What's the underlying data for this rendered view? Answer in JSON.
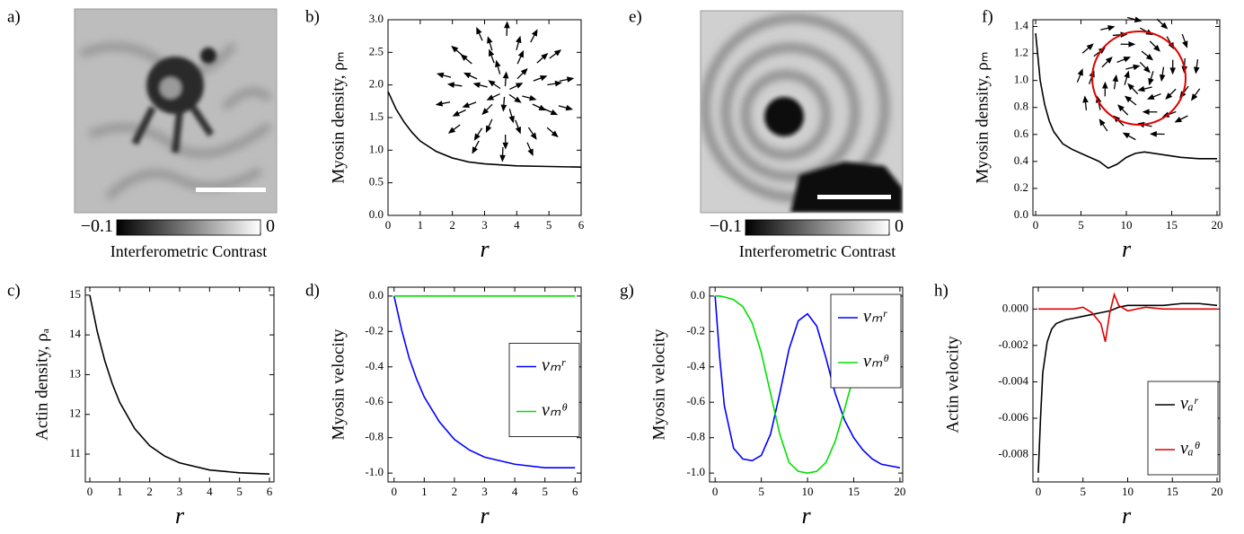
{
  "chart_data": [
    {
      "type": "image",
      "panel": "a)",
      "colorbar": {
        "lim": [
          -0.1,
          0
        ],
        "ticks": [
          {
            "value": -0.1,
            "label": "−0.1"
          },
          0
        ],
        "label": "Interferometric Contrast"
      }
    },
    {
      "type": "line",
      "panel": "b)",
      "xlabel": "r",
      "ylabel": "Myosin density, ρₘ",
      "x": [
        0,
        0.25,
        0.5,
        0.75,
        1,
        1.5,
        2,
        2.5,
        3,
        4,
        5,
        6
      ],
      "series": [
        {
          "color": "#000000",
          "values": [
            1.9,
            1.63,
            1.43,
            1.27,
            1.14,
            0.98,
            0.88,
            0.82,
            0.79,
            0.76,
            0.75,
            0.74
          ]
        }
      ],
      "xlim": [
        0,
        6
      ],
      "ylim": [
        0,
        3
      ],
      "xticks": [
        0,
        1,
        2,
        3,
        4,
        5,
        6
      ],
      "yticks": [
        {
          "value": 0,
          "label": "0.0"
        },
        0.5,
        {
          "value": 1,
          "label": "1.0"
        },
        1.5,
        {
          "value": 2,
          "label": "2.0"
        },
        2.5,
        {
          "value": 3,
          "label": "3.0"
        }
      ]
    },
    {
      "type": "line",
      "panel": "c)",
      "xlabel": "r",
      "ylabel": "Actin density, ρₐ",
      "x": [
        0,
        0.25,
        0.5,
        0.75,
        1,
        1.5,
        2,
        2.5,
        3,
        4,
        5,
        6
      ],
      "series": [
        {
          "color": "#000000",
          "values": [
            15.0,
            14.08,
            13.35,
            12.77,
            12.3,
            11.64,
            11.21,
            10.95,
            10.78,
            10.6,
            10.53,
            10.5
          ]
        }
      ],
      "xlim": [
        -0.15,
        6.15
      ],
      "ylim": [
        10.3,
        15.2
      ],
      "xticks": [
        0,
        1,
        2,
        3,
        4,
        5,
        6
      ],
      "yticks": [
        11,
        12,
        13,
        14,
        15
      ]
    },
    {
      "type": "line",
      "panel": "d)",
      "xlabel": "r",
      "ylabel": "Myosin velocity",
      "legend": "center right",
      "x": [
        0,
        0.25,
        0.5,
        0.75,
        1,
        1.5,
        2,
        2.5,
        3,
        4,
        5,
        6
      ],
      "series": [
        {
          "name": "vₘʳ",
          "color": "#0000ff",
          "values": [
            0,
            -0.19,
            -0.35,
            -0.47,
            -0.57,
            -0.71,
            -0.81,
            -0.87,
            -0.91,
            -0.95,
            -0.97,
            -0.97
          ]
        },
        {
          "name": "vₘᶿ",
          "color": "#00e000",
          "values": [
            0,
            0,
            0,
            0,
            0,
            0,
            0,
            0,
            0,
            0,
            0,
            0
          ]
        }
      ],
      "xlim": [
        -0.2,
        6.2
      ],
      "ylim": [
        -1.05,
        0.05
      ],
      "xticks": [
        0,
        1,
        2,
        3,
        4,
        5,
        6
      ],
      "yticks": [
        {
          "value": 0,
          "label": "0.0"
        },
        -0.2,
        -0.4,
        -0.6,
        -0.8,
        {
          "value": -1,
          "label": "-1.0"
        }
      ]
    },
    {
      "type": "image",
      "panel": "e)",
      "colorbar": {
        "lim": [
          -0.1,
          0
        ],
        "ticks": [
          {
            "value": -0.1,
            "label": "−0.1"
          },
          0
        ],
        "label": "Interferometric Contrast"
      }
    },
    {
      "type": "line",
      "panel": "f)",
      "xlabel": "r",
      "ylabel": "Myosin density, ρₘ",
      "x": [
        0,
        0.5,
        1,
        1.5,
        2,
        3,
        4,
        5,
        6,
        7,
        8,
        9,
        10,
        11,
        12,
        13,
        14,
        16,
        18,
        20
      ],
      "series": [
        {
          "color": "#000000",
          "values": [
            1.35,
            1.0,
            0.82,
            0.7,
            0.62,
            0.53,
            0.49,
            0.46,
            0.43,
            0.4,
            0.35,
            0.38,
            0.43,
            0.46,
            0.47,
            0.46,
            0.45,
            0.43,
            0.42,
            0.42
          ]
        }
      ],
      "xlim": [
        -0.3,
        20.3
      ],
      "ylim": [
        0,
        1.45
      ],
      "xticks": [
        0,
        5,
        10,
        15,
        20
      ],
      "yticks": [
        {
          "value": 0,
          "label": "0.0"
        },
        0.2,
        0.4,
        0.6,
        0.8,
        {
          "value": 1,
          "label": "1.0"
        },
        1.2,
        1.4
      ]
    },
    {
      "type": "line",
      "panel": "g)",
      "xlabel": "r",
      "ylabel": "Myosin velocity",
      "legend": "upper right",
      "x": [
        0,
        0.5,
        1,
        2,
        3,
        4,
        5,
        6,
        7,
        8,
        9,
        10,
        11,
        12,
        13,
        14,
        15,
        16,
        17,
        18,
        19,
        20
      ],
      "series": [
        {
          "name": "vₘʳ",
          "color": "#0000ff",
          "values": [
            0,
            -0.35,
            -0.62,
            -0.86,
            -0.92,
            -0.93,
            -0.9,
            -0.78,
            -0.55,
            -0.3,
            -0.14,
            -0.1,
            -0.17,
            -0.35,
            -0.55,
            -0.7,
            -0.8,
            -0.87,
            -0.92,
            -0.95,
            -0.96,
            -0.97
          ]
        },
        {
          "name": "vₘᶿ",
          "color": "#00e000",
          "values": [
            0,
            0,
            -0.005,
            -0.02,
            -0.06,
            -0.15,
            -0.32,
            -0.55,
            -0.78,
            -0.94,
            -0.99,
            -1.0,
            -0.99,
            -0.94,
            -0.82,
            -0.64,
            -0.45,
            -0.3,
            -0.18,
            -0.1,
            -0.05,
            -0.03
          ]
        }
      ],
      "xlim": [
        -0.6,
        20.3
      ],
      "ylim": [
        -1.05,
        0.05
      ],
      "xticks": [
        0,
        5,
        10,
        15,
        20
      ],
      "yticks": [
        {
          "value": 0,
          "label": "0.0"
        },
        -0.2,
        -0.4,
        -0.6,
        -0.8,
        {
          "value": -1,
          "label": "-1.0"
        }
      ]
    },
    {
      "type": "line",
      "panel": "h)",
      "xlabel": "r",
      "ylabel": "Actin velocity",
      "legend": "lower right",
      "x": [
        0,
        0.25,
        0.5,
        1,
        1.5,
        2,
        3,
        4,
        5,
        6,
        7,
        7.5,
        8,
        8.5,
        9,
        10,
        12,
        14,
        16,
        18,
        20
      ],
      "series": [
        {
          "name": "vₐʳ",
          "color": "#000000",
          "values": [
            -0.009,
            -0.006,
            -0.0035,
            -0.0018,
            -0.0011,
            -0.0008,
            -0.0006,
            -0.0005,
            -0.0004,
            -0.0003,
            -0.0002,
            -0.00015,
            -0.0001,
            0,
            0.0001,
            0.0002,
            0.0002,
            0.0002,
            0.0003,
            0.0003,
            0.0002
          ]
        },
        {
          "name": "vₐᶿ",
          "color": "#e00000",
          "values": [
            0,
            0,
            0,
            0,
            0,
            0,
            0,
            0,
            0.0001,
            -0.0002,
            -0.0008,
            -0.0018,
            -0.0002,
            0.0008,
            0.0002,
            -0.0001,
            0.0001,
            0,
            0,
            0,
            0
          ]
        }
      ],
      "xlim": [
        -0.6,
        20.3
      ],
      "ylim": [
        -0.0095,
        0.0012
      ],
      "xticks": [
        0,
        5,
        10,
        15,
        20
      ],
      "yticks": [
        {
          "value": 0,
          "label": "0.000"
        },
        -0.002,
        -0.004,
        -0.006,
        -0.008
      ]
    }
  ]
}
